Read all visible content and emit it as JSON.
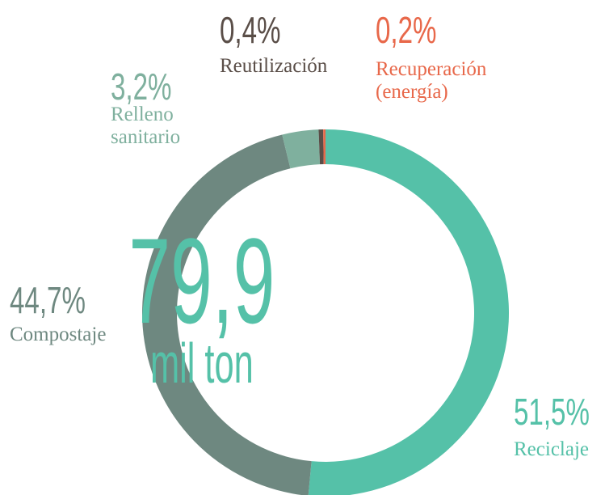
{
  "chart_data": {
    "type": "donut",
    "categories": [
      "Reciclaje",
      "Compostaje",
      "Relleno sanitario",
      "Reutilización",
      "Recuperación (energía)"
    ],
    "values": [
      51.5,
      44.7,
      3.2,
      0.4,
      0.2
    ],
    "value_labels": [
      "51,5%",
      "44,7%",
      "3,2%",
      "0,4%",
      "0,2%"
    ],
    "colors": [
      "#55c1a8",
      "#6e8880",
      "#7fb09e",
      "#5a4e48",
      "#e8684a"
    ],
    "center_value": "79,9",
    "center_unit": "mil ton"
  }
}
